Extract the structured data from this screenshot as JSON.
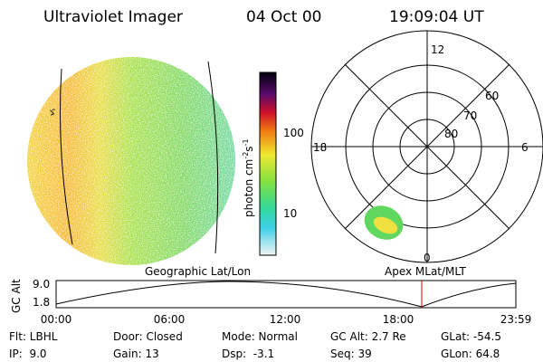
{
  "header": {
    "instrument": "Ultraviolet Imager",
    "date": "04 Oct 00",
    "time": "19:09:04 UT"
  },
  "colorbar": {
    "unit": "photon cm",
    "exp1": "-2",
    "unit2": "s",
    "exp2": "-1",
    "ticks": [
      "100",
      "10"
    ]
  },
  "polar": {
    "mlt": [
      "12",
      "18",
      "6",
      "0"
    ],
    "mlat": [
      "60",
      "70",
      "80"
    ]
  },
  "disk": {
    "marker": "ゞ"
  },
  "strip": {
    "axis_label": "GC Alt",
    "y_labels": [
      "9.0",
      "1.8"
    ],
    "left_title": "Geographic Lat/Lon",
    "right_title": "Apex MLat/MLT",
    "times": [
      "00:00",
      "06:00",
      "12:00",
      "18:00",
      "23:59"
    ]
  },
  "info": {
    "rows": [
      [
        "Flt: LBHL",
        "Door: Closed",
        "Mode: Normal",
        "GC Alt: 2.7 Re",
        "GLat: -54.5"
      ],
      [
        "IP:  9.0",
        "Gain: 13",
        "Dsp:  -3.1",
        "Seq: 39",
        "GLon: 64.8"
      ]
    ]
  }
}
